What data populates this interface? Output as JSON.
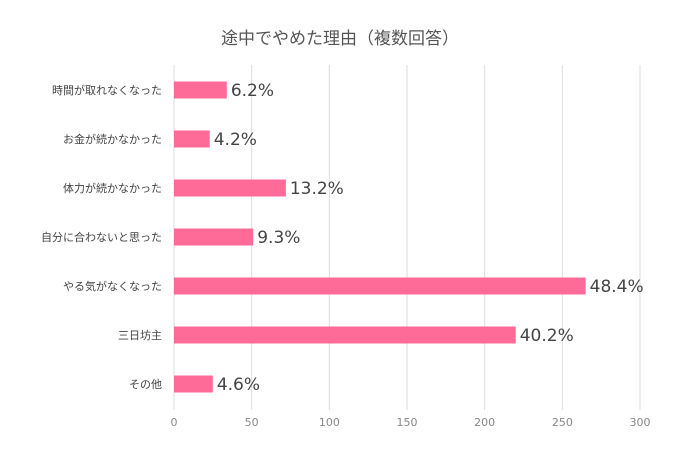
{
  "chart_data": {
    "type": "bar",
    "orientation": "horizontal",
    "title": "途中でやめた理由（複数回答）",
    "categories": [
      "時間が取れなくなった",
      "お金が続かなかった",
      "体力が続かなかった",
      "自分に合わないと思った",
      "やる気がなくなった",
      "三日坊主",
      "その他"
    ],
    "values": [
      34,
      23,
      72,
      51,
      265,
      220,
      25
    ],
    "data_labels": [
      "6.2%",
      "4.2%",
      "13.2%",
      "9.3%",
      "48.4%",
      "40.2%",
      "4.6%"
    ],
    "xlim": [
      0,
      300
    ],
    "xticks": [
      0,
      50,
      100,
      150,
      200,
      250,
      300
    ],
    "xlabel": "",
    "ylabel": "",
    "grid": true,
    "legend": "none",
    "bar_color": "#ff6b99"
  }
}
